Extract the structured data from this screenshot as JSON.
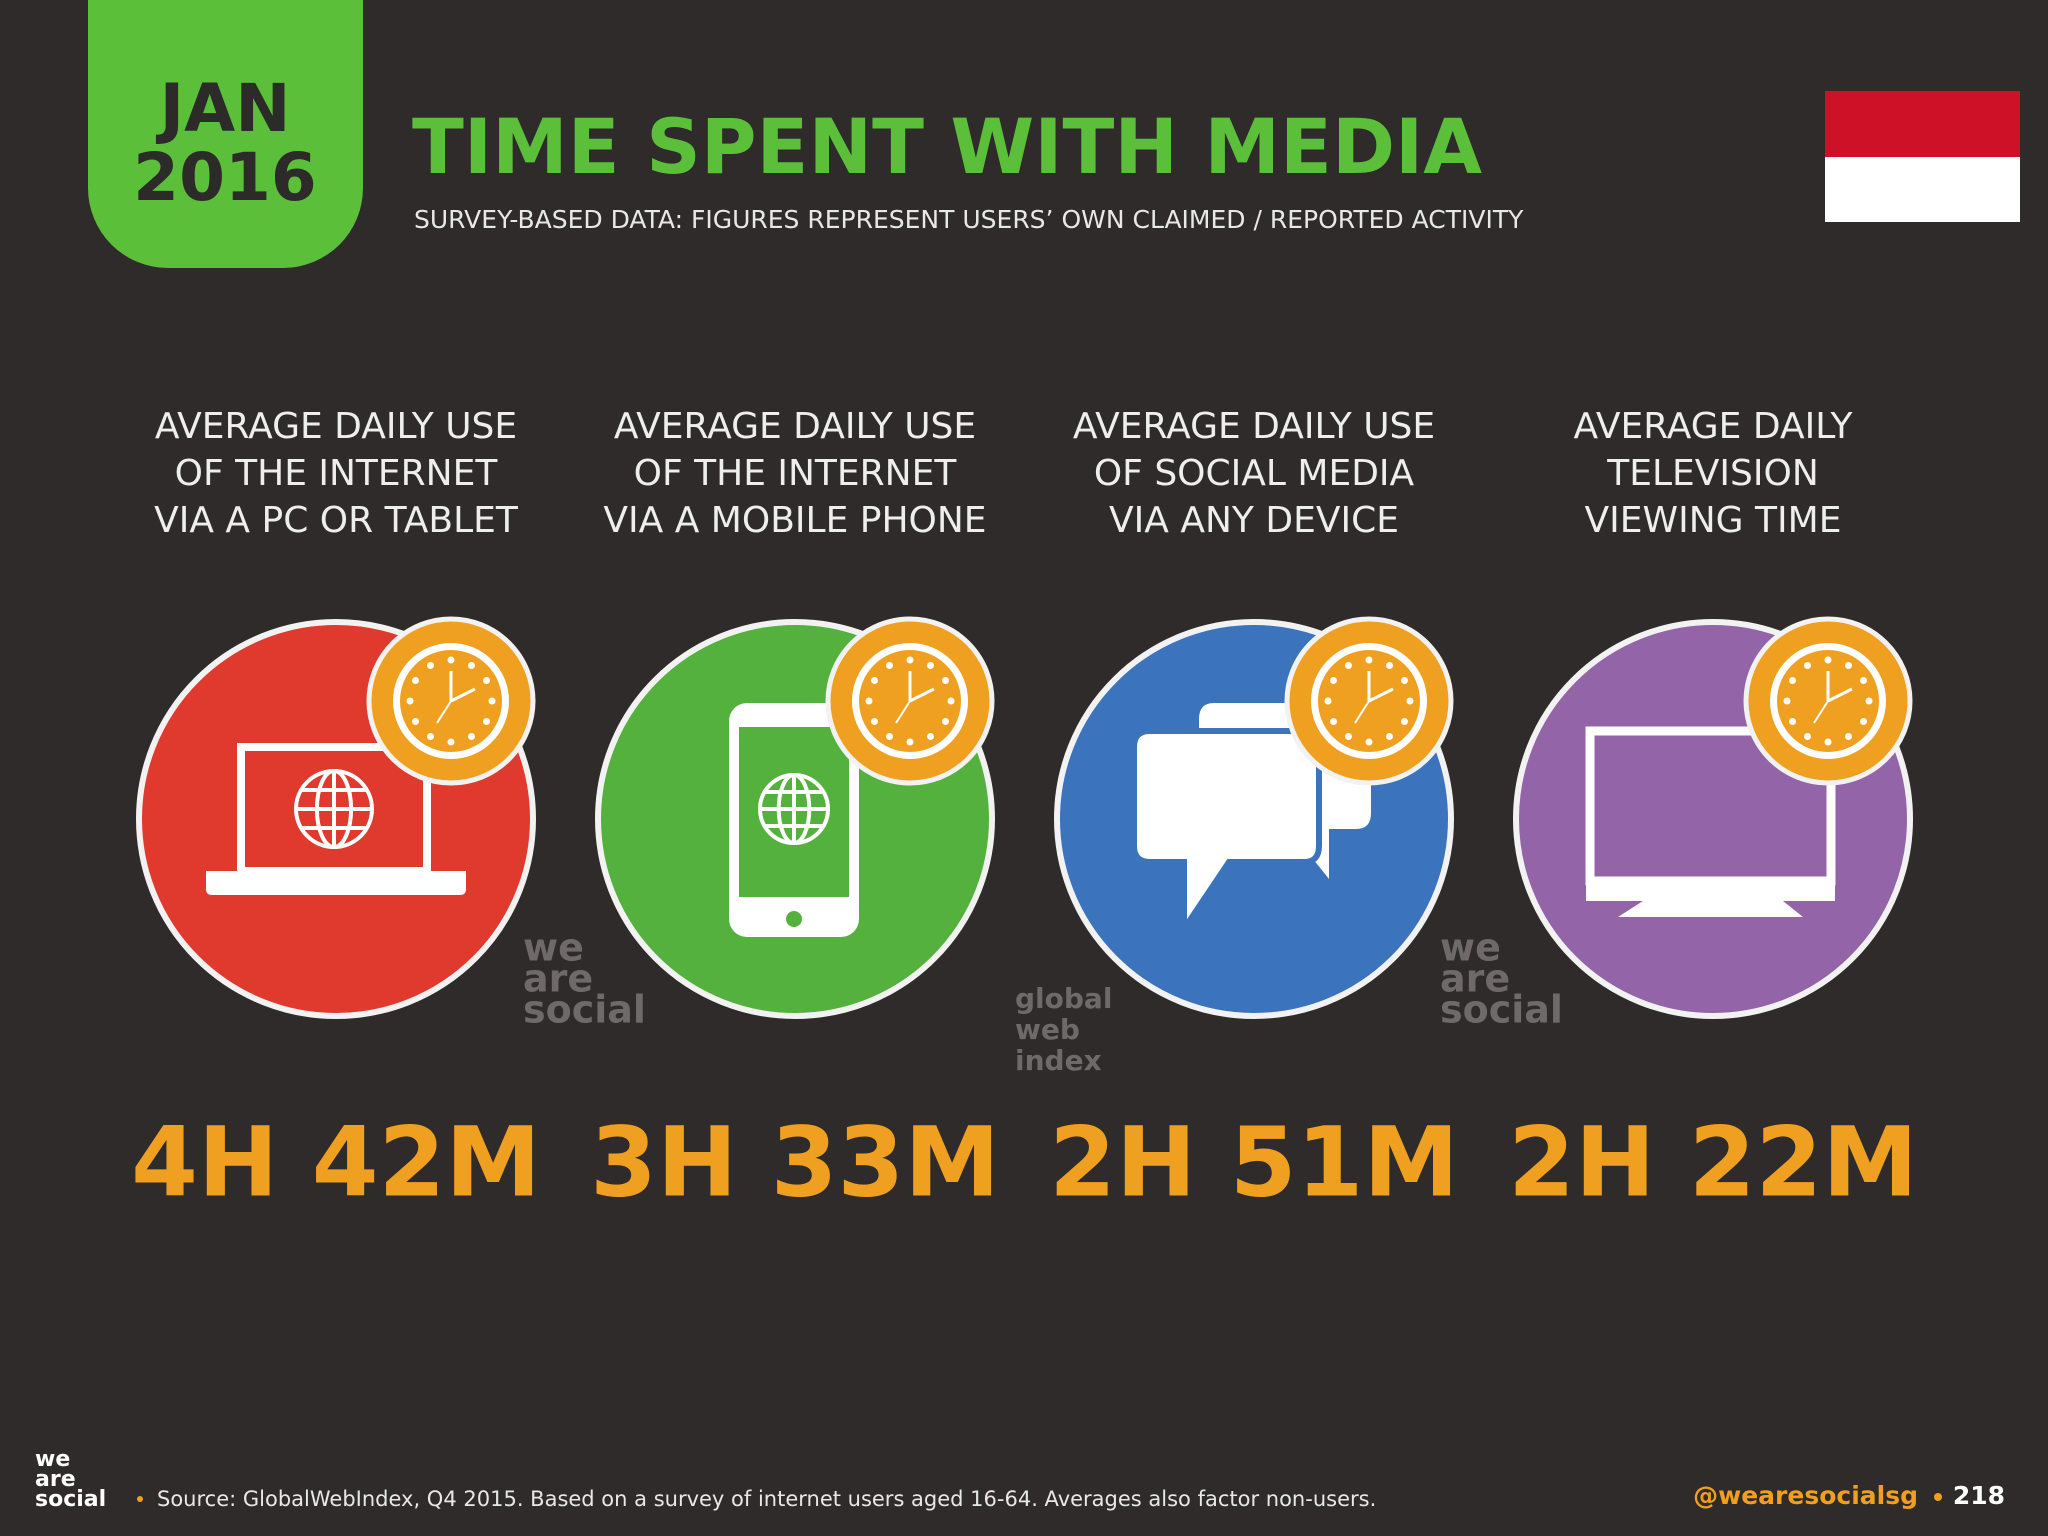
{
  "header": {
    "badge": [
      "JAN",
      "2016"
    ],
    "title": "TIME SPENT WITH MEDIA",
    "subtitle": "SURVEY-BASED DATA: FIGURES REPRESENT USERS’ OWN CLAIMED / REPORTED ACTIVITY"
  },
  "stats": [
    {
      "label": [
        "AVERAGE DAILY USE",
        "OF THE INTERNET",
        "VIA A PC OR TABLET"
      ],
      "value": "4H 42M",
      "color": "#e03a2f"
    },
    {
      "label": [
        "AVERAGE DAILY USE",
        "OF THE INTERNET",
        "VIA A MOBILE PHONE"
      ],
      "value": "3H 33M",
      "color": "#55b13d"
    },
    {
      "label": [
        "AVERAGE DAILY USE",
        "OF SOCIAL MEDIA",
        "VIA ANY DEVICE"
      ],
      "value": "2H 51M",
      "color": "#3b73bc"
    },
    {
      "label": [
        "AVERAGE DAILY",
        "TELEVISION",
        "VIEWING TIME"
      ],
      "value": "2H 22M",
      "color": "#9464a8"
    }
  ],
  "watermarks": [
    [
      "we",
      "are",
      "social"
    ],
    [
      "global",
      "web",
      "index"
    ],
    [
      "we",
      "are",
      "social"
    ]
  ],
  "footer": {
    "logo": [
      "we",
      "are",
      "social"
    ],
    "source": "Source: GlobalWebIndex, Q4 2015. Based on a survey of internet users aged 16-64. Averages also factor non-users.",
    "handle": "@wearesocialsg",
    "page": "218"
  }
}
